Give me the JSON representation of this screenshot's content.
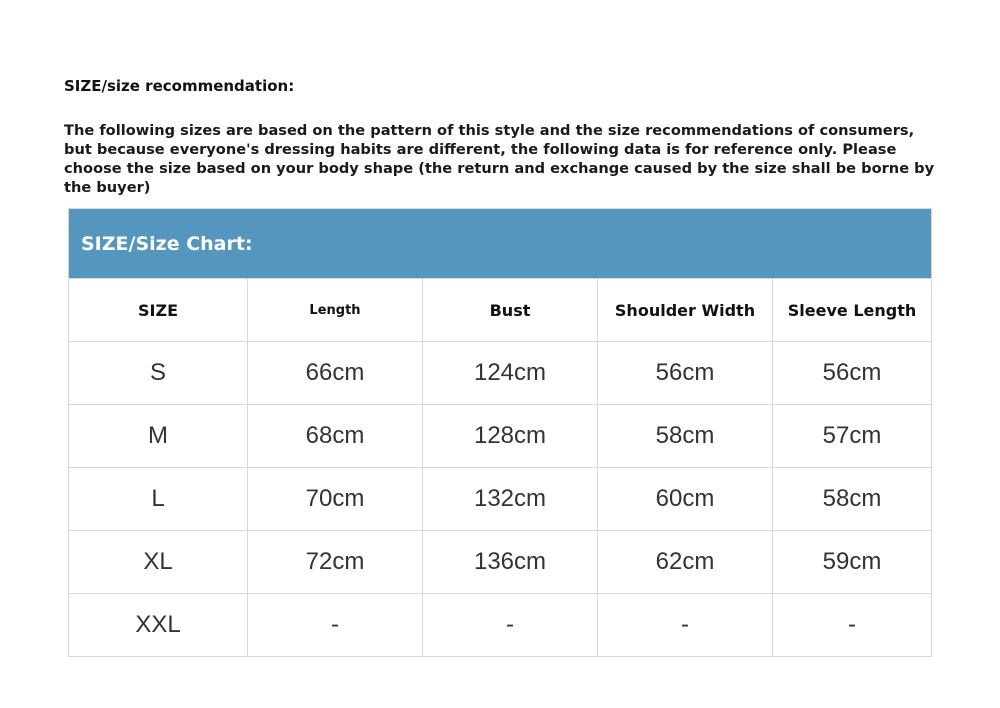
{
  "heading": "SIZE/size recommendation:",
  "intro": "The following sizes are based on the pattern of this style and the size recommendations of consumers, but because everyone's dressing habits are different, the following data is for reference only. Please choose the size based on your body shape (the return and exchange caused by the size shall be borne by the buyer)",
  "table": {
    "title": "SIZE/Size Chart:",
    "headers": [
      "SIZE",
      "Length",
      "Bust",
      "Shoulder Width",
      "Sleeve Length"
    ],
    "rows": [
      [
        "S",
        "66cm",
        "124cm",
        "56cm",
        "56cm"
      ],
      [
        "M",
        "68cm",
        "128cm",
        "58cm",
        "57cm"
      ],
      [
        "L",
        "70cm",
        "132cm",
        "60cm",
        "58cm"
      ],
      [
        "XL",
        "72cm",
        "136cm",
        "62cm",
        "59cm"
      ],
      [
        "XXL",
        "-",
        "-",
        "-",
        "-"
      ]
    ]
  },
  "colors": {
    "banner": "#5496bd"
  }
}
